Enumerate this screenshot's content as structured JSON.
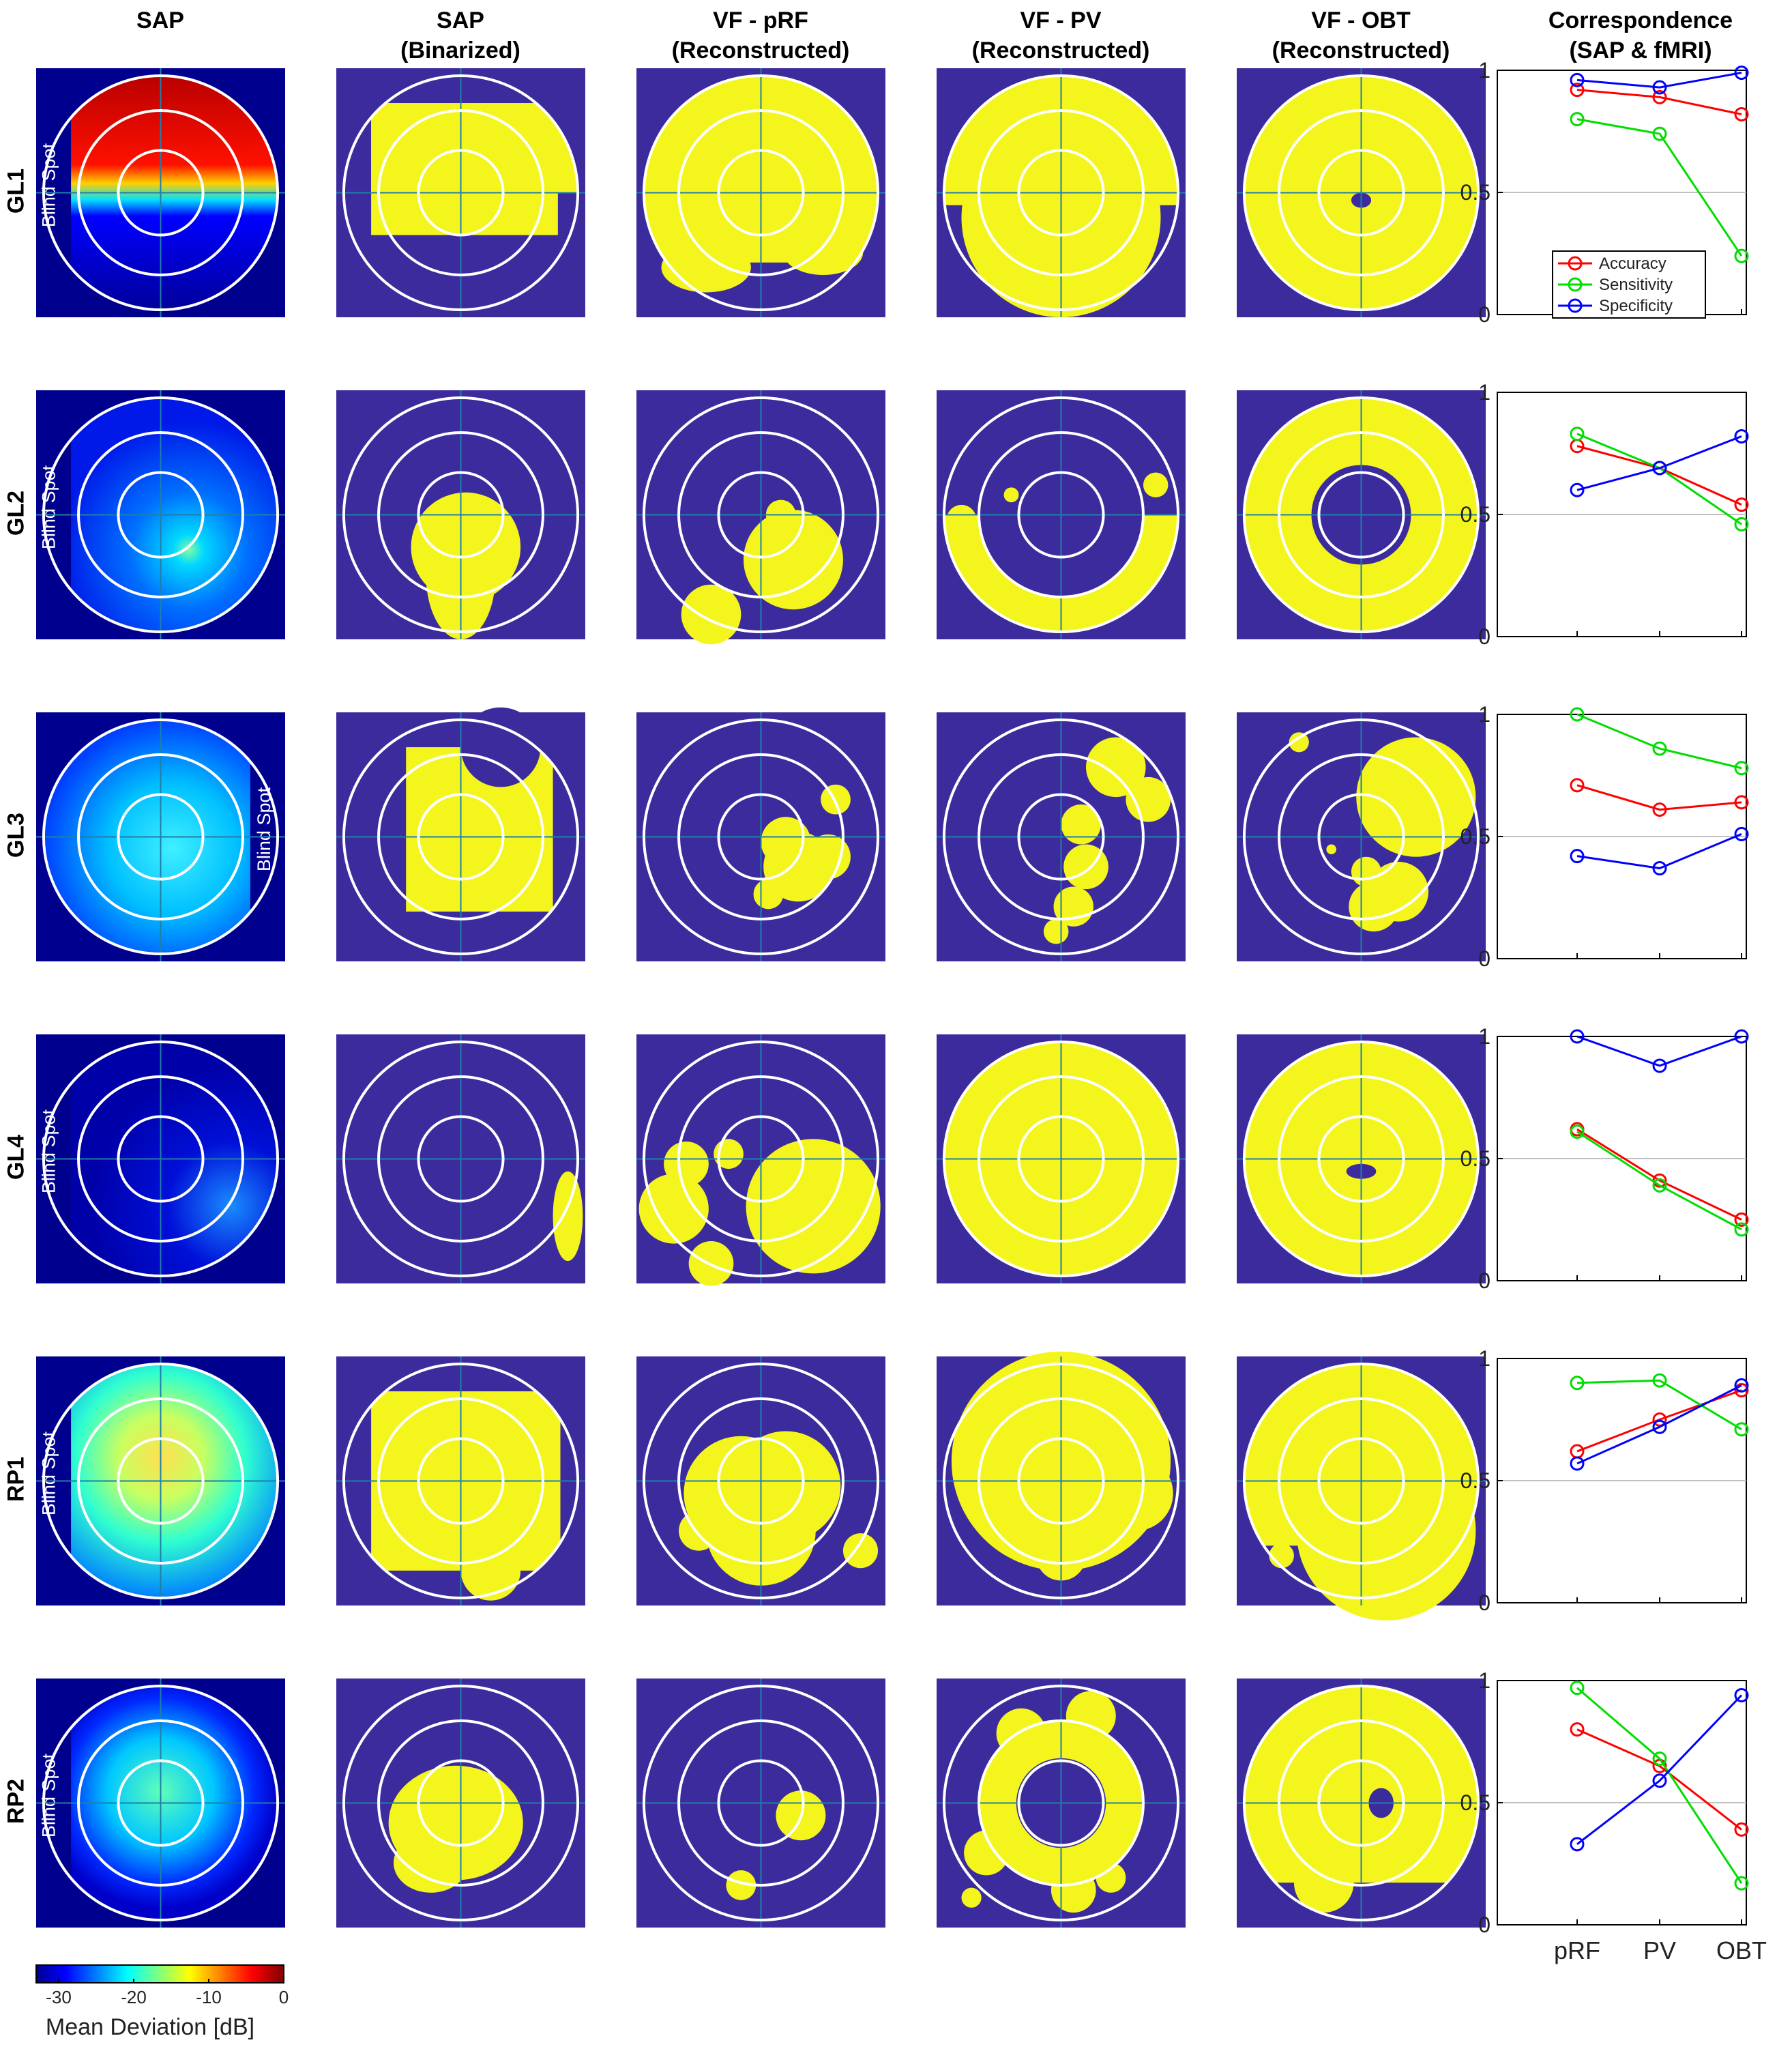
{
  "column_headers": [
    {
      "line1": "SAP",
      "line2": ""
    },
    {
      "line1": "SAP",
      "line2": "(Binarized)"
    },
    {
      "line1": "VF - pRF",
      "line2": "(Reconstructed)"
    },
    {
      "line1": "VF - PV",
      "line2": "(Reconstructed)"
    },
    {
      "line1": "VF - OBT",
      "line2": "(Reconstructed)"
    },
    {
      "line1": "Correspondence",
      "line2": "(SAP & fMRI)"
    }
  ],
  "row_labels": [
    "GL1",
    "GL2",
    "GL3",
    "GL4",
    "RP1",
    "RP2"
  ],
  "blind_spot_label": "Blind Spot",
  "colorbar": {
    "label": "Mean Deviation [dB]",
    "ticks": [
      "-30",
      "-20",
      "-10",
      "0"
    ],
    "range": [
      -33,
      0
    ],
    "colormap": "jet"
  },
  "colors": {
    "map_background": "#3b2b9c",
    "sap_outside": "#00008f",
    "region_fill": "#f5f51e",
    "rings": "#ffffff",
    "crosshair": "#1f7fa8",
    "accuracy": "#ff0000",
    "sensitivity": "#00dd00",
    "specificity": "#0000ff",
    "reference_line": "#c0c0c0"
  },
  "chart_data": [
    {
      "type": "line",
      "title": "GL1",
      "categories": [
        "pRF",
        "PV",
        "OBT"
      ],
      "ylim": [
        0,
        1
      ],
      "yticks": [
        "0",
        "0.5",
        "1"
      ],
      "reference_y": 0.5,
      "legend": "inside",
      "series": [
        {
          "name": "Accuracy",
          "values": [
            0.92,
            0.89,
            0.82
          ]
        },
        {
          "name": "Sensitivity",
          "values": [
            0.8,
            0.74,
            0.24
          ]
        },
        {
          "name": "Specificity",
          "values": [
            0.96,
            0.93,
            0.99
          ]
        }
      ]
    },
    {
      "type": "line",
      "title": "GL2",
      "categories": [
        "pRF",
        "PV",
        "OBT"
      ],
      "ylim": [
        0,
        1
      ],
      "yticks": [
        "0",
        "0.5",
        "1"
      ],
      "reference_y": 0.5,
      "series": [
        {
          "name": "Accuracy",
          "values": [
            0.78,
            0.69,
            0.54
          ]
        },
        {
          "name": "Sensitivity",
          "values": [
            0.83,
            0.69,
            0.46
          ]
        },
        {
          "name": "Specificity",
          "values": [
            0.6,
            0.69,
            0.82
          ]
        }
      ]
    },
    {
      "type": "line",
      "title": "GL3",
      "categories": [
        "pRF",
        "PV",
        "OBT"
      ],
      "ylim": [
        0,
        1
      ],
      "yticks": [
        "0",
        "0.5",
        "1"
      ],
      "reference_y": 0.5,
      "series": [
        {
          "name": "Accuracy",
          "values": [
            0.71,
            0.61,
            0.64
          ]
        },
        {
          "name": "Sensitivity",
          "values": [
            1.0,
            0.86,
            0.78
          ]
        },
        {
          "name": "Specificity",
          "values": [
            0.42,
            0.37,
            0.51
          ]
        }
      ]
    },
    {
      "type": "line",
      "title": "GL4",
      "categories": [
        "pRF",
        "PV",
        "OBT"
      ],
      "ylim": [
        0,
        1
      ],
      "yticks": [
        "0",
        "0.5",
        "1"
      ],
      "reference_y": 0.5,
      "series": [
        {
          "name": "Accuracy",
          "values": [
            0.62,
            0.41,
            0.25
          ]
        },
        {
          "name": "Sensitivity",
          "values": [
            0.61,
            0.39,
            0.21
          ]
        },
        {
          "name": "Specificity",
          "values": [
            1.0,
            0.88,
            1.0
          ]
        }
      ]
    },
    {
      "type": "line",
      "title": "RP1",
      "categories": [
        "pRF",
        "PV",
        "OBT"
      ],
      "ylim": [
        0,
        1
      ],
      "yticks": [
        "0",
        "0.5",
        "1"
      ],
      "reference_y": 0.5,
      "series": [
        {
          "name": "Accuracy",
          "values": [
            0.62,
            0.75,
            0.87
          ]
        },
        {
          "name": "Sensitivity",
          "values": [
            0.9,
            0.91,
            0.71
          ]
        },
        {
          "name": "Specificity",
          "values": [
            0.57,
            0.72,
            0.89
          ]
        }
      ]
    },
    {
      "type": "line",
      "title": "RP2",
      "categories": [
        "pRF",
        "PV",
        "OBT"
      ],
      "ylim": [
        0,
        1
      ],
      "yticks": [
        "0",
        "0.5",
        "1"
      ],
      "reference_y": 0.5,
      "show_xticklabels": true,
      "series": [
        {
          "name": "Accuracy",
          "values": [
            0.8,
            0.65,
            0.39
          ]
        },
        {
          "name": "Sensitivity",
          "values": [
            0.97,
            0.68,
            0.17
          ]
        },
        {
          "name": "Specificity",
          "values": [
            0.33,
            0.59,
            0.94
          ]
        }
      ]
    }
  ]
}
